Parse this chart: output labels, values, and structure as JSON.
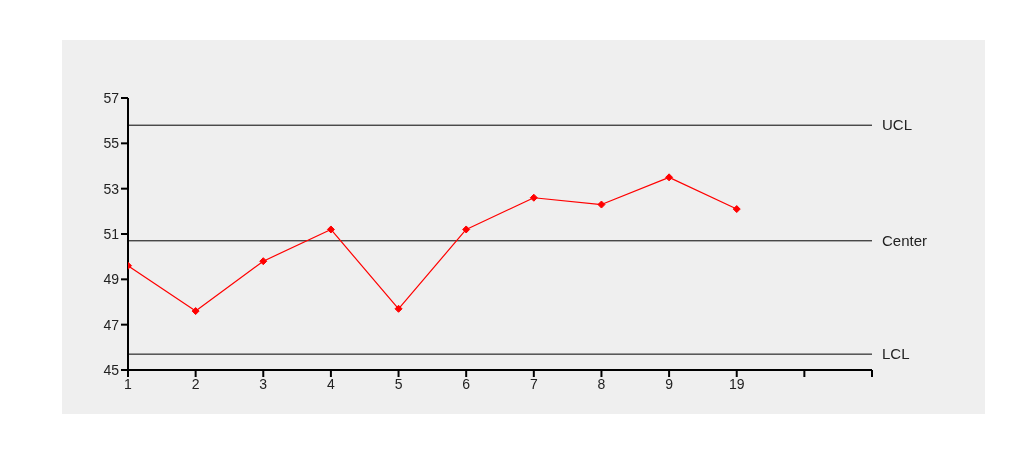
{
  "chart_data": {
    "type": "line",
    "categories": [
      "1",
      "2",
      "3",
      "4",
      "5",
      "6",
      "7",
      "8",
      "9",
      "19",
      null,
      null
    ],
    "series": [
      {
        "color": "#ff0000",
        "values": [
          49.6,
          47.6,
          49.8,
          51.2,
          47.7,
          51.2,
          52.6,
          52.3,
          53.5,
          52.1,
          null,
          null
        ]
      }
    ],
    "ylim": [
      45,
      57
    ],
    "yticks": [
      45,
      47,
      49,
      51,
      53,
      55,
      57
    ],
    "ref_lines": [
      {
        "axis": "y",
        "value": 55.8,
        "label": "UCL",
        "color": "#000000"
      },
      {
        "axis": "y",
        "value": 50.7,
        "label": "Center",
        "color": "#000000"
      },
      {
        "axis": "y",
        "value": 45.7,
        "label": "LCL",
        "color": "#000000"
      }
    ],
    "grid": false,
    "marker": "diamond",
    "line_style": "solid"
  }
}
